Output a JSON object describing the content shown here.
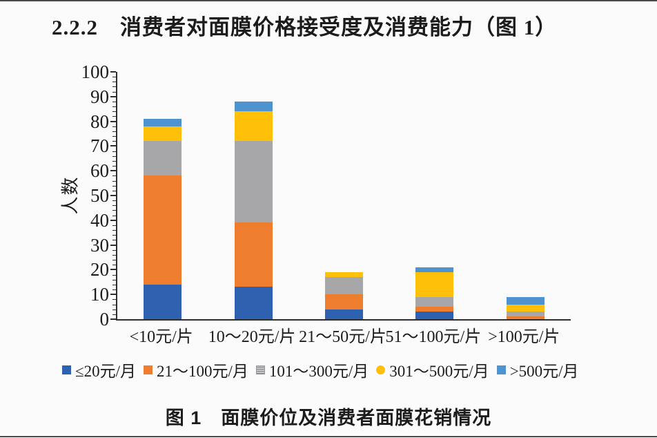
{
  "page": {
    "section_title": "2.2.2　消费者对面膜价格接受度及消费能力（图 1）",
    "caption": "图 1　面膜价位及消费者面膜花销情况",
    "background": "#fbfbfb"
  },
  "chart_data": {
    "type": "bar",
    "stacked": true,
    "title": "",
    "xlabel": "",
    "ylabel": "人数",
    "grid": false,
    "legend_position": "bottom",
    "categories": [
      "<10元/片",
      "10～20元/片",
      "21～50元/片",
      "51～100元/片",
      ">100元/片"
    ],
    "series": [
      {
        "name": "≤20元/月",
        "color": "#2E62B0",
        "marker": "square",
        "values": [
          14,
          13,
          4,
          3,
          0
        ]
      },
      {
        "name": "21～100元/月",
        "color": "#EE7D2E",
        "marker": "square",
        "values": [
          44,
          26,
          6,
          2,
          1
        ]
      },
      {
        "name": "101～300元/月",
        "color": "#A7A7A9",
        "marker": "pattern-square",
        "values": [
          14,
          33,
          7,
          4,
          2
        ]
      },
      {
        "name": "301～500元/月",
        "color": "#FFC00A",
        "marker": "circle",
        "values": [
          6,
          12,
          2,
          10,
          3
        ]
      },
      {
        "name": ">500元/月",
        "color": "#4E92D0",
        "marker": "square",
        "values": [
          3,
          4,
          0,
          2,
          3
        ]
      }
    ],
    "stack_totals": [
      81,
      88,
      19,
      21,
      9
    ],
    "y_axis": {
      "min": 0,
      "max": 100,
      "major_step": 10,
      "minor_step": 2,
      "tick_labels": [
        "0",
        "10",
        "20",
        "30",
        "40",
        "50",
        "60",
        "70",
        "80",
        "90",
        "100"
      ]
    },
    "axis_color": "#2e2e2e"
  }
}
